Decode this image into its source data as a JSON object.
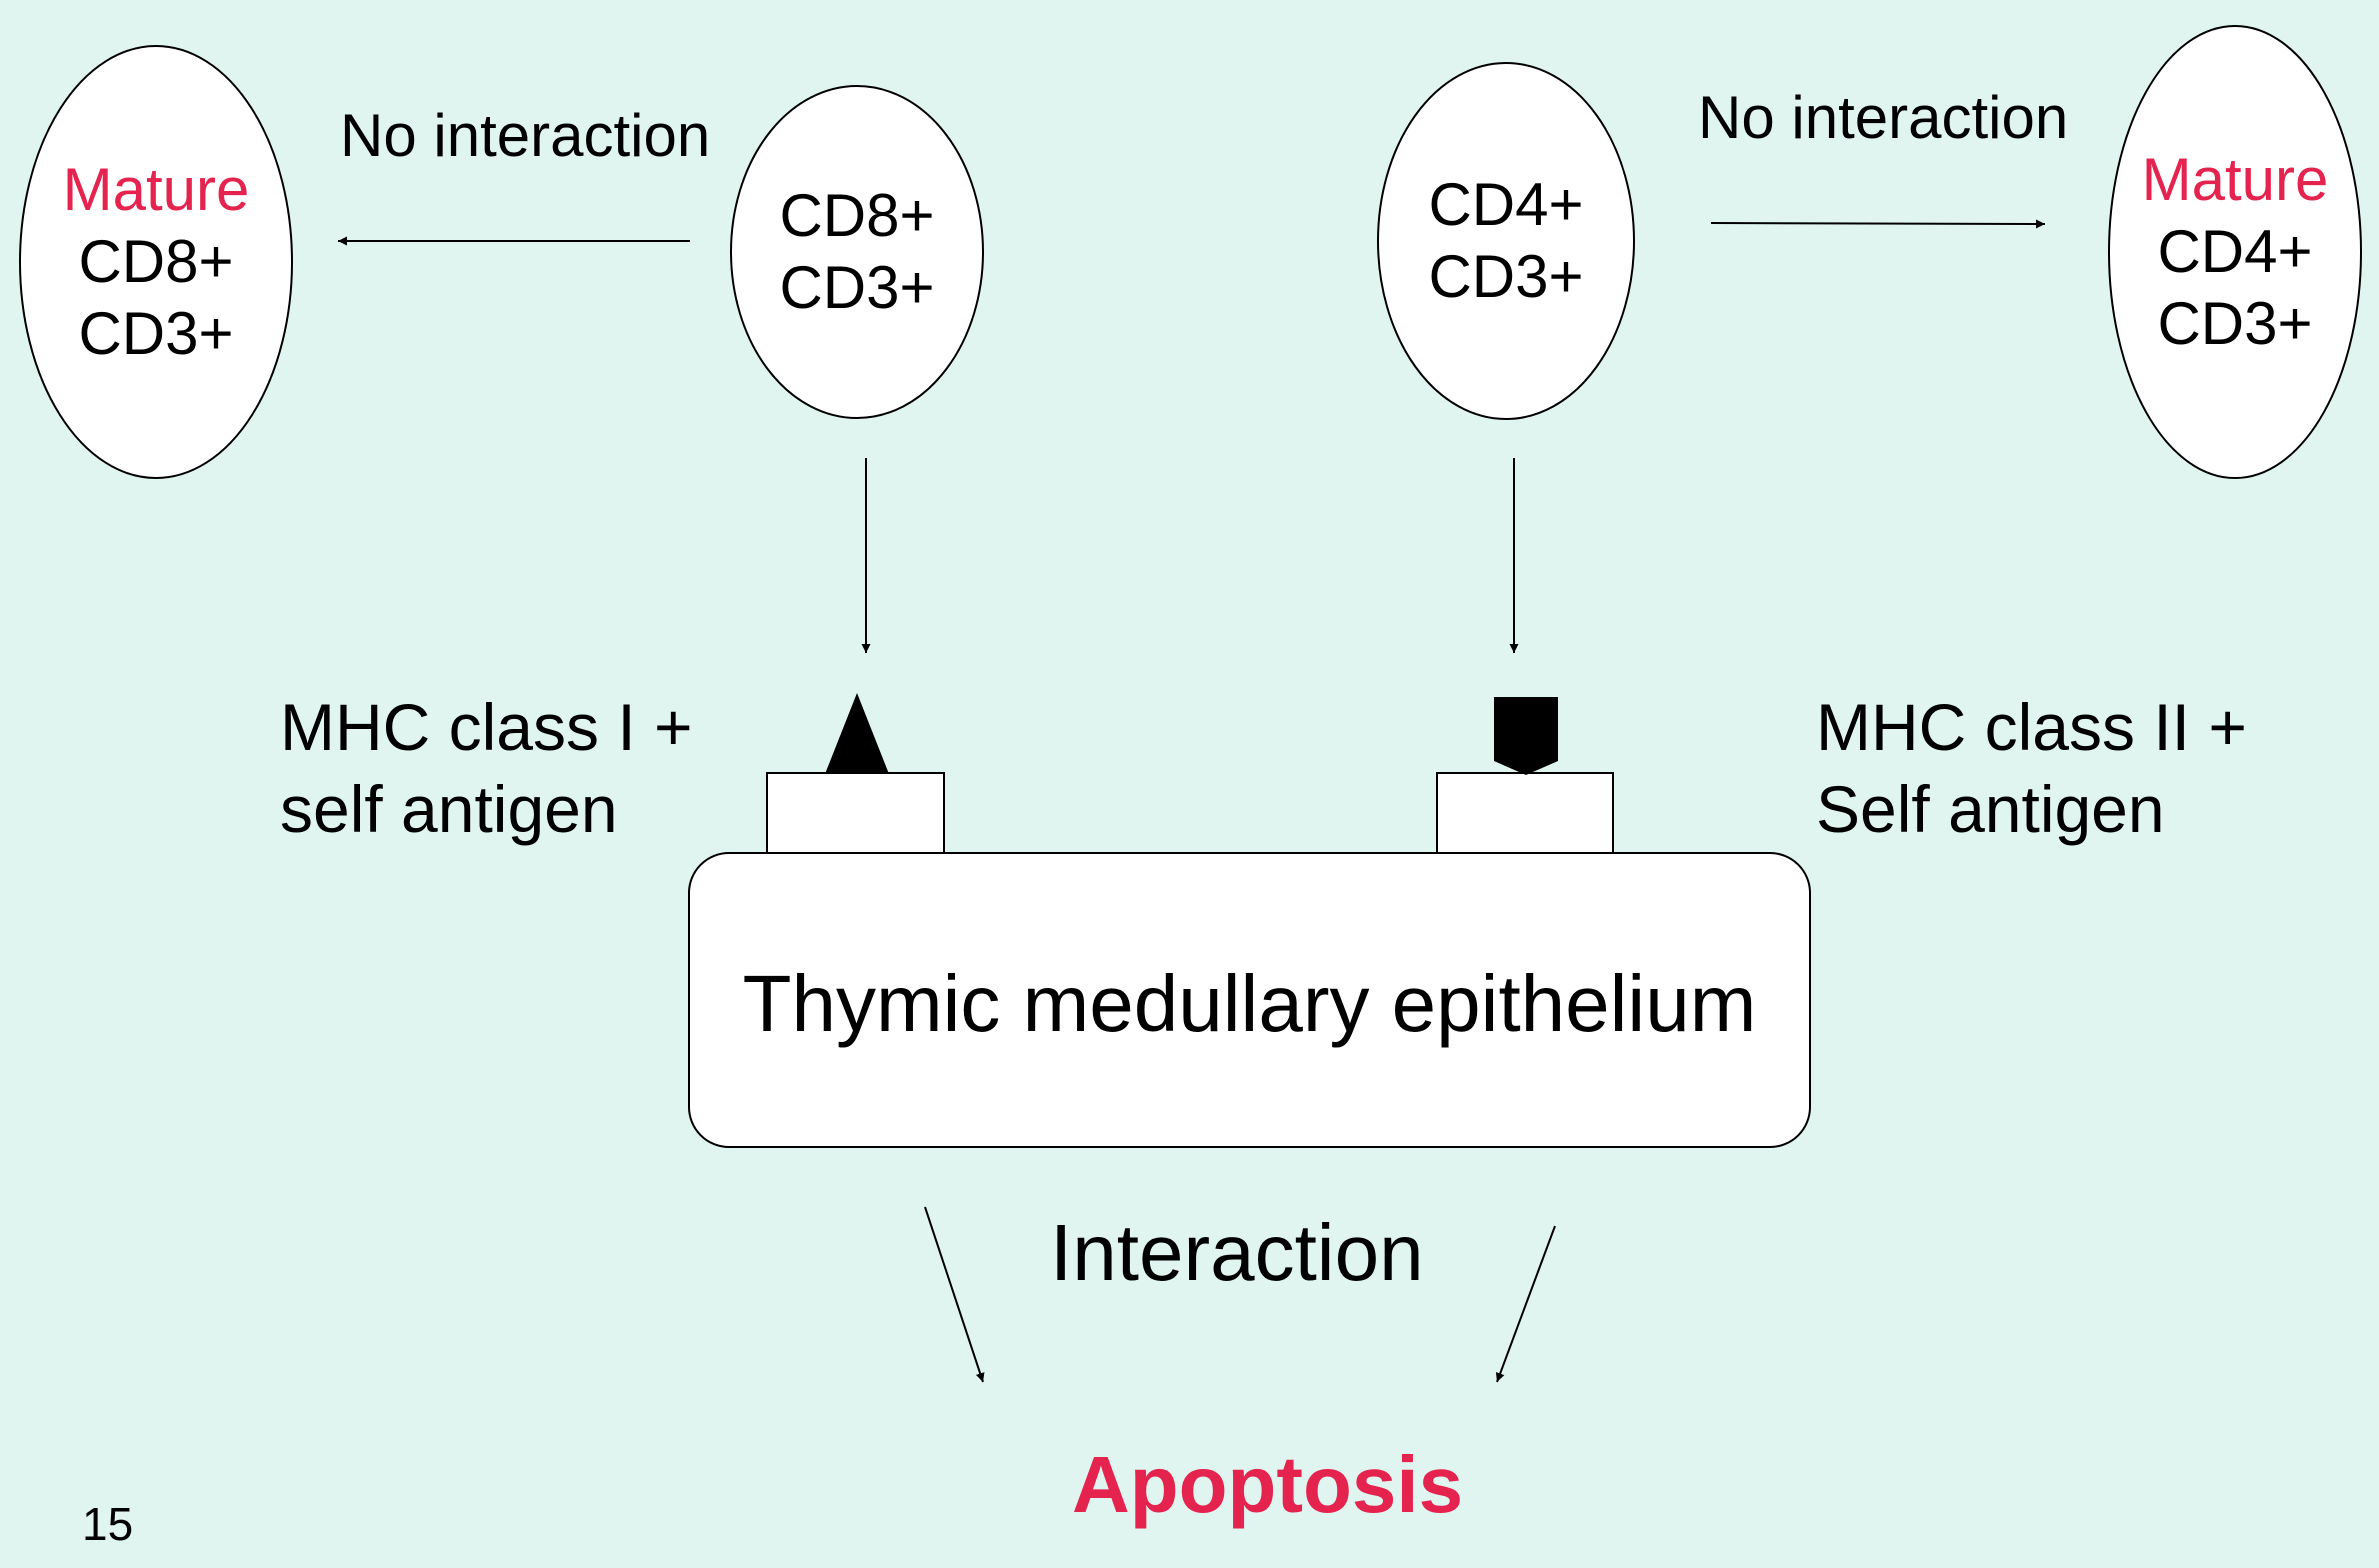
{
  "colors": {
    "background": "#e0f5f0",
    "accent_red": "#e5234f",
    "stroke": "#000000",
    "fill_white": "#ffffff"
  },
  "cells": {
    "mature_cd8": {
      "mature_label": "Mature",
      "line1": "CD8+",
      "line2": "CD3+"
    },
    "cd8": {
      "line1": "CD8+",
      "line2": "CD3+"
    },
    "cd4": {
      "line1": "CD4+",
      "line2": "CD3+"
    },
    "mature_cd4": {
      "mature_label": "Mature",
      "line1": "CD4+",
      "line2": "CD3+"
    }
  },
  "labels": {
    "no_interaction_left": "No interaction",
    "no_interaction_right": "No interaction",
    "mhc_class1_line1": "MHC class I +",
    "mhc_class1_line2": "self antigen",
    "mhc_class2_line1": "MHC class II +",
    "mhc_class2_line2": "Self antigen",
    "epithelium": "Thymic medullary epithelium",
    "interaction": "Interaction",
    "apoptosis": "Apoptosis"
  },
  "slide_number": "15"
}
